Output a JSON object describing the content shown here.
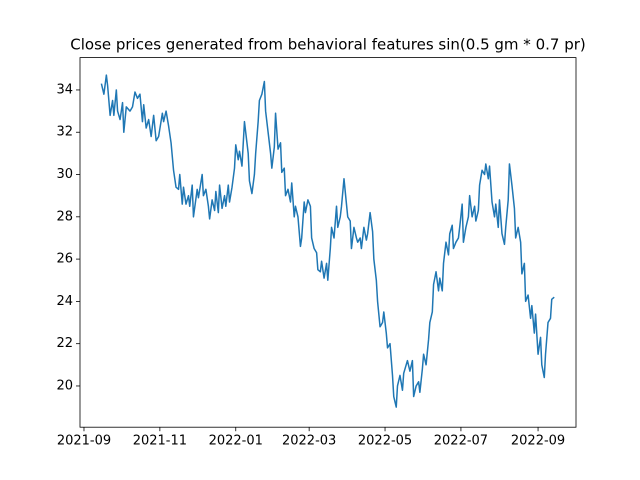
{
  "chart_data": {
    "type": "line",
    "title": "Close prices generated from behavioral features sin(0.5 gm * 0.7 pr)",
    "color": "#1f77b4",
    "xlim": [
      18867.8,
      19266.5
    ],
    "xticks": [
      {
        "value": 18871,
        "label": "2021-09"
      },
      {
        "value": 18932,
        "label": "2021-11"
      },
      {
        "value": 18993,
        "label": "2022-01"
      },
      {
        "value": 19052,
        "label": "2022-03"
      },
      {
        "value": 19113,
        "label": "2022-05"
      },
      {
        "value": 19174,
        "label": "2022-07"
      },
      {
        "value": 19236,
        "label": "2022-09"
      }
    ],
    "ylim": [
      18.05,
      35.53
    ],
    "yticks": [
      20,
      22,
      24,
      26,
      28,
      30,
      32,
      34
    ],
    "x": [
      18885,
      18887,
      18889,
      18890,
      18892,
      18894,
      18895,
      18897,
      18898,
      18900,
      18902,
      18903,
      18905,
      18908,
      18910,
      18912,
      18914,
      18916,
      18918,
      18919,
      18921,
      18923,
      18925,
      18927,
      18929,
      18931,
      18934,
      18935,
      18937,
      18939,
      18941,
      18943,
      18945,
      18947,
      18948,
      18950,
      18951,
      18953,
      18955,
      18956,
      18958,
      18959,
      18962,
      18963,
      18966,
      18967,
      18969,
      18971,
      18972,
      18974,
      18976,
      18977,
      18979,
      18980,
      18982,
      18984,
      18985,
      18987,
      18988,
      18990,
      18992,
      18993,
      18995,
      18996,
      18998,
      19000,
      19001,
      19003,
      19004,
      19006,
      19008,
      19009,
      19011,
      19012,
      19014,
      19016,
      19017,
      19019,
      19021,
      19022,
      19024,
      19025,
      19027,
      19029,
      19030,
      19032,
      19033,
      19035,
      19037,
      19038,
      19040,
      19041,
      19043,
      19045,
      19046,
      19048,
      19049,
      19051,
      19053,
      19054,
      19056,
      19058,
      19059,
      19061,
      19062,
      19064,
      19066,
      19067,
      19069,
      19070,
      19072,
      19074,
      19075,
      19077,
      19078,
      19080,
      19082,
      19083,
      19085,
      19086,
      19088,
      19090,
      19091,
      19093,
      19094,
      19096,
      19098,
      19099,
      19101,
      19103,
      19104,
      19106,
      19107,
      19109,
      19111,
      19112,
      19114,
      19115,
      19117,
      19119,
      19120,
      19122,
      19123,
      19125,
      19127,
      19128,
      19130,
      19131,
      19133,
      19135,
      19136,
      19138,
      19140,
      19141,
      19143,
      19144,
      19146,
      19148,
      19149,
      19151,
      19152,
      19154,
      19156,
      19157,
      19159,
      19160,
      19162,
      19164,
      19165,
      19167,
      19168,
      19170,
      19172,
      19173,
      19175,
      19176,
      19178,
      19180,
      19181,
      19183,
      19185,
      19186,
      19188,
      19189,
      19191,
      19193,
      19194,
      19196,
      19197,
      19199,
      19201,
      19202,
      19204,
      19205,
      19207,
      19209,
      19210,
      19212,
      19213,
      19215,
      19217,
      19218,
      19220,
      19222,
      19223,
      19225,
      19226,
      19228,
      19230,
      19231,
      19233,
      19234,
      19236,
      19238,
      19239,
      19241,
      19242,
      19244,
      19246,
      19247,
      19249
    ],
    "values": [
      34.3,
      33.8,
      34.7,
      34.2,
      32.8,
      33.5,
      32.8,
      34.0,
      33.0,
      32.6,
      33.4,
      32.0,
      33.2,
      33.0,
      33.2,
      33.9,
      33.6,
      33.8,
      32.5,
      33.3,
      32.2,
      32.6,
      31.8,
      32.8,
      31.6,
      31.8,
      32.9,
      32.5,
      33.0,
      32.3,
      31.5,
      30.2,
      29.4,
      29.3,
      30.0,
      28.6,
      29.4,
      28.6,
      29.0,
      28.5,
      29.5,
      28.0,
      29.3,
      28.9,
      30.0,
      29.0,
      29.3,
      28.5,
      27.9,
      28.8,
      28.3,
      29.2,
      28.2,
      29.5,
      28.4,
      29.0,
      28.5,
      29.5,
      28.7,
      29.4,
      30.3,
      31.4,
      30.7,
      31.1,
      30.4,
      32.5,
      32.0,
      31.0,
      29.7,
      29.1,
      30.0,
      31.0,
      32.5,
      33.5,
      33.8,
      34.4,
      33.0,
      32.0,
      31.0,
      30.3,
      31.3,
      32.9,
      31.2,
      31.5,
      30.1,
      30.3,
      29.0,
      29.3,
      28.7,
      29.6,
      28.0,
      28.5,
      28.0,
      26.6,
      27.0,
      28.7,
      28.2,
      28.8,
      28.5,
      27.0,
      26.5,
      26.3,
      25.5,
      25.4,
      25.9,
      25.1,
      25.8,
      25.0,
      26.5,
      27.5,
      27.0,
      28.5,
      27.5,
      28.0,
      28.5,
      29.8,
      28.6,
      28.0,
      27.8,
      26.5,
      27.5,
      27.0,
      26.8,
      27.0,
      26.5,
      27.5,
      26.9,
      27.2,
      28.2,
      27.3,
      26.0,
      25.0,
      24.0,
      22.8,
      23.0,
      23.5,
      22.5,
      21.8,
      22.0,
      20.5,
      19.5,
      19.0,
      20.0,
      20.5,
      19.8,
      20.6,
      21.0,
      21.2,
      20.7,
      21.2,
      19.5,
      20.0,
      20.2,
      19.7,
      20.8,
      21.5,
      21.0,
      22.2,
      23.0,
      23.5,
      24.8,
      25.4,
      24.5,
      25.1,
      24.5,
      25.8,
      26.8,
      26.2,
      27.2,
      27.6,
      26.5,
      26.8,
      27.0,
      27.5,
      28.6,
      26.8,
      27.5,
      28.0,
      29.0,
      28.0,
      28.5,
      27.8,
      28.3,
      29.5,
      30.2,
      30.0,
      30.5,
      29.8,
      30.4,
      28.7,
      28.0,
      28.6,
      27.5,
      28.8,
      27.2,
      26.7,
      27.5,
      28.8,
      30.5,
      29.5,
      28.4,
      27.0,
      27.5,
      26.8,
      25.3,
      25.8,
      24.0,
      24.3,
      23.2,
      23.8,
      22.5,
      23.4,
      21.5,
      22.3,
      21.0,
      20.4,
      21.5,
      23.0,
      23.2,
      24.1,
      24.2
    ]
  }
}
